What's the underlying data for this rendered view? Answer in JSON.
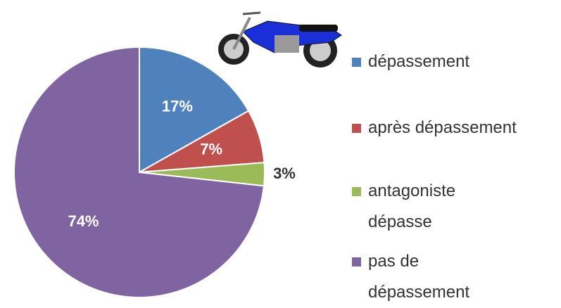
{
  "chart_data": {
    "type": "pie",
    "categories": [
      "dépassement",
      "après dépassement",
      "antagoniste dépasse",
      "pas de dépassement"
    ],
    "values": [
      17,
      7,
      3,
      74
    ],
    "value_labels": [
      "17%",
      "7%",
      "3%",
      "74%"
    ],
    "colors": [
      "#4f81bd",
      "#c0504d",
      "#9bbb59",
      "#8064a2"
    ]
  }
}
